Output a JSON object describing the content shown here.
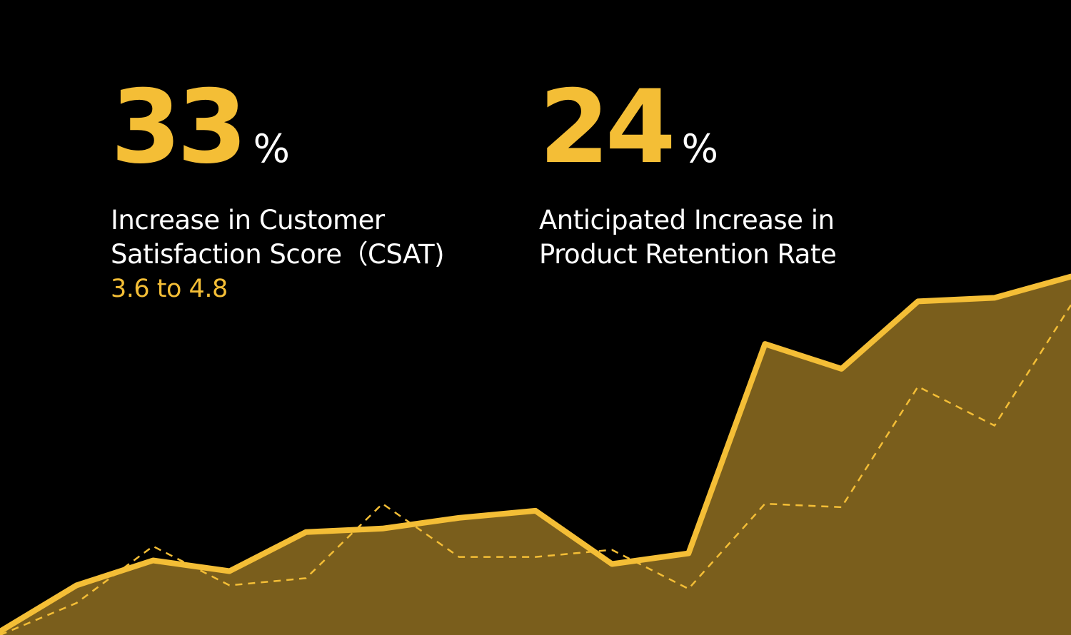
{
  "colors": {
    "background": "#000000",
    "accent": "#F4BE36",
    "fill": "#7A5E1C",
    "text": "#FFFFFF"
  },
  "stats": [
    {
      "number": "33",
      "unit": "%",
      "label_line1": "Increase in Customer",
      "label_line2": "Satisfaction Score（CSAT)",
      "sub": "3.6 to 4.8"
    },
    {
      "number": "24",
      "unit": "%",
      "label_line1": "Anticipated Increase in",
      "label_line2": "Product Retention Rate"
    }
  ],
  "chart_data": {
    "type": "area",
    "title": "",
    "xlabel": "",
    "ylabel": "",
    "grid": false,
    "x": [
      0,
      1,
      2,
      3,
      4,
      5,
      6,
      7,
      8,
      9,
      10,
      11,
      12,
      13,
      14
    ],
    "xlim": [
      0,
      14
    ],
    "ylim": [
      0,
      100
    ],
    "series": [
      {
        "name": "solid",
        "style": "solid-area",
        "values": [
          1,
          14,
          21,
          18,
          29,
          30,
          33,
          35,
          20,
          23,
          82,
          75,
          94,
          95,
          101
        ]
      },
      {
        "name": "dashed",
        "style": "dashed-line",
        "x": [
          0,
          1,
          2,
          3,
          4,
          5,
          6,
          7,
          8,
          9,
          10,
          11,
          12,
          13,
          14
        ],
        "values": [
          0,
          9,
          25,
          14,
          16,
          37,
          22,
          22,
          24,
          13,
          37,
          36,
          70,
          59,
          93
        ]
      }
    ]
  }
}
